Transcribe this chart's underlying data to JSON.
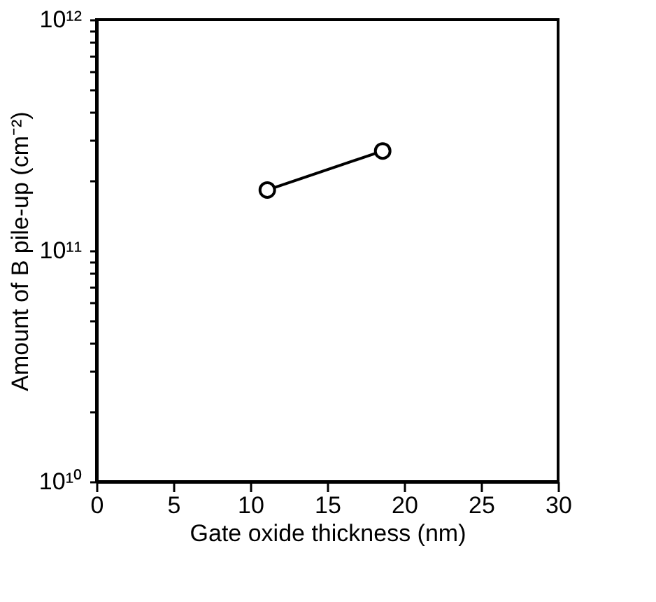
{
  "chart_data": {
    "type": "line",
    "xlabel": "Gate oxide thickness (nm)",
    "ylabel": "Amount of B pile-up (cm⁻²)",
    "x": [
      11.1,
      18.6
    ],
    "series": [
      {
        "color": "#000000",
        "values": [
          183000000000.0,
          270000000000.0
        ]
      }
    ],
    "xlim": [
      0,
      30
    ],
    "xticks": [
      0,
      5,
      10,
      15,
      20,
      25,
      30
    ],
    "ylim": [
      10000000000.0,
      1000000000000.0
    ],
    "yticks": [
      {
        "value": 10000000000.0,
        "label": "10¹⁰"
      },
      {
        "value": 20000000000.0,
        "label": null
      },
      {
        "value": 30000000000.0,
        "label": null
      },
      {
        "value": 40000000000.0,
        "label": null
      },
      {
        "value": 50000000000.0,
        "label": null
      },
      {
        "value": 60000000000.0,
        "label": null
      },
      {
        "value": 70000000000.0,
        "label": null
      },
      {
        "value": 80000000000.0,
        "label": null
      },
      {
        "value": 90000000000.0,
        "label": null
      },
      {
        "value": 100000000000.0,
        "label": "10¹¹"
      },
      {
        "value": 200000000000.0,
        "label": null
      },
      {
        "value": 300000000000.0,
        "label": null
      },
      {
        "value": 400000000000.0,
        "label": null
      },
      {
        "value": 500000000000.0,
        "label": null
      },
      {
        "value": 600000000000.0,
        "label": null
      },
      {
        "value": 700000000000.0,
        "label": null
      },
      {
        "value": 800000000000.0,
        "label": null
      },
      {
        "value": 900000000000.0,
        "label": null
      },
      {
        "value": 1000000000000.0,
        "label": "10¹²"
      }
    ],
    "log": true,
    "marker": "circle",
    "line_style": "solid",
    "grid": false
  }
}
